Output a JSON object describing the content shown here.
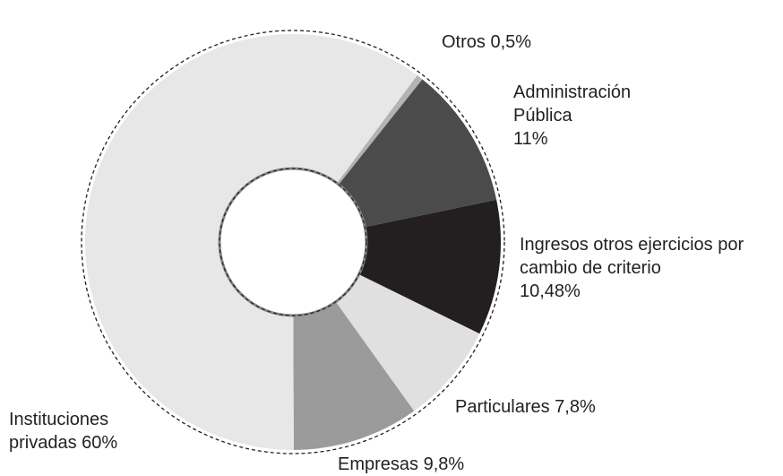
{
  "chart_data": {
    "type": "pie",
    "categories": [
      "Otros",
      "Administración Pública",
      "Ingresos otros ejercicios por cambio de criterio",
      "Particulares",
      "Empresas",
      "Instituciones privadas"
    ],
    "values": [
      0.5,
      11,
      10.48,
      7.8,
      9.8,
      60
    ],
    "value_labels": [
      "0,5%",
      "11%",
      "10,48%",
      "7,8%",
      "9,8%",
      "60%"
    ],
    "colors": [
      "#b3b3b3",
      "#4b4b4b",
      "#231f20",
      "#e0e0e0",
      "#9b9b9b",
      "#e7e7e7"
    ],
    "donut": true
  }
}
